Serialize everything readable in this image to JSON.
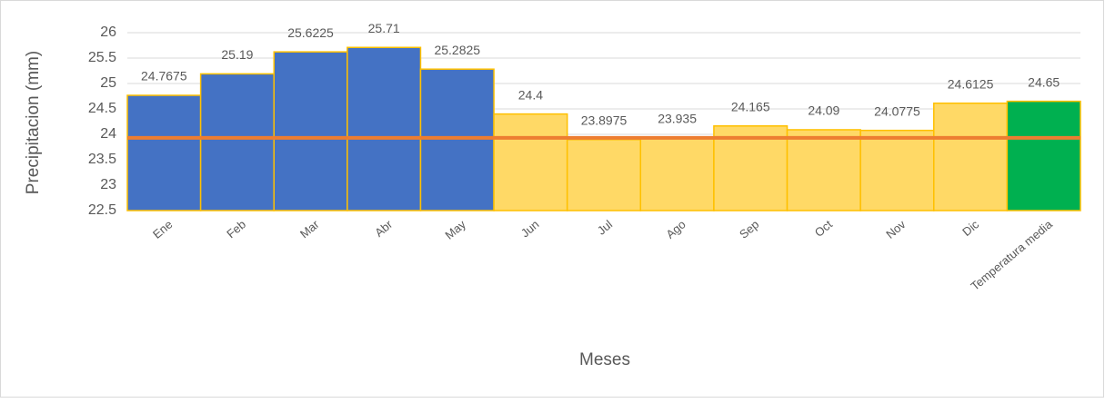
{
  "chart_data": {
    "type": "bar",
    "x_label": "Meses",
    "y_label": "Precipitacion (mm)",
    "categories": [
      "Ene",
      "Feb",
      "Mar",
      "Abr",
      "May",
      "Jun",
      "Jul",
      "Ago",
      "Sep",
      "Oct",
      "Nov",
      "Dic",
      "Temperatura media"
    ],
    "values": [
      24.7675,
      25.19,
      25.6225,
      25.71,
      25.2825,
      24.4,
      23.8975,
      23.935,
      24.165,
      24.09,
      24.0775,
      24.6125,
      24.65
    ],
    "colors": [
      "#4472c4",
      "#4472c4",
      "#4472c4",
      "#4472c4",
      "#4472c4",
      "#ffd966",
      "#ffd966",
      "#ffd966",
      "#ffd966",
      "#ffd966",
      "#ffd966",
      "#ffd966",
      "#00b050"
    ],
    "border_color": "#ffc000",
    "reference_line": {
      "value": 23.93,
      "color": "#ed7d31"
    },
    "ylim": [
      22.5,
      26
    ],
    "yticks": [
      22.5,
      23,
      23.5,
      24,
      24.5,
      25,
      25.5,
      26
    ],
    "grid": true
  }
}
